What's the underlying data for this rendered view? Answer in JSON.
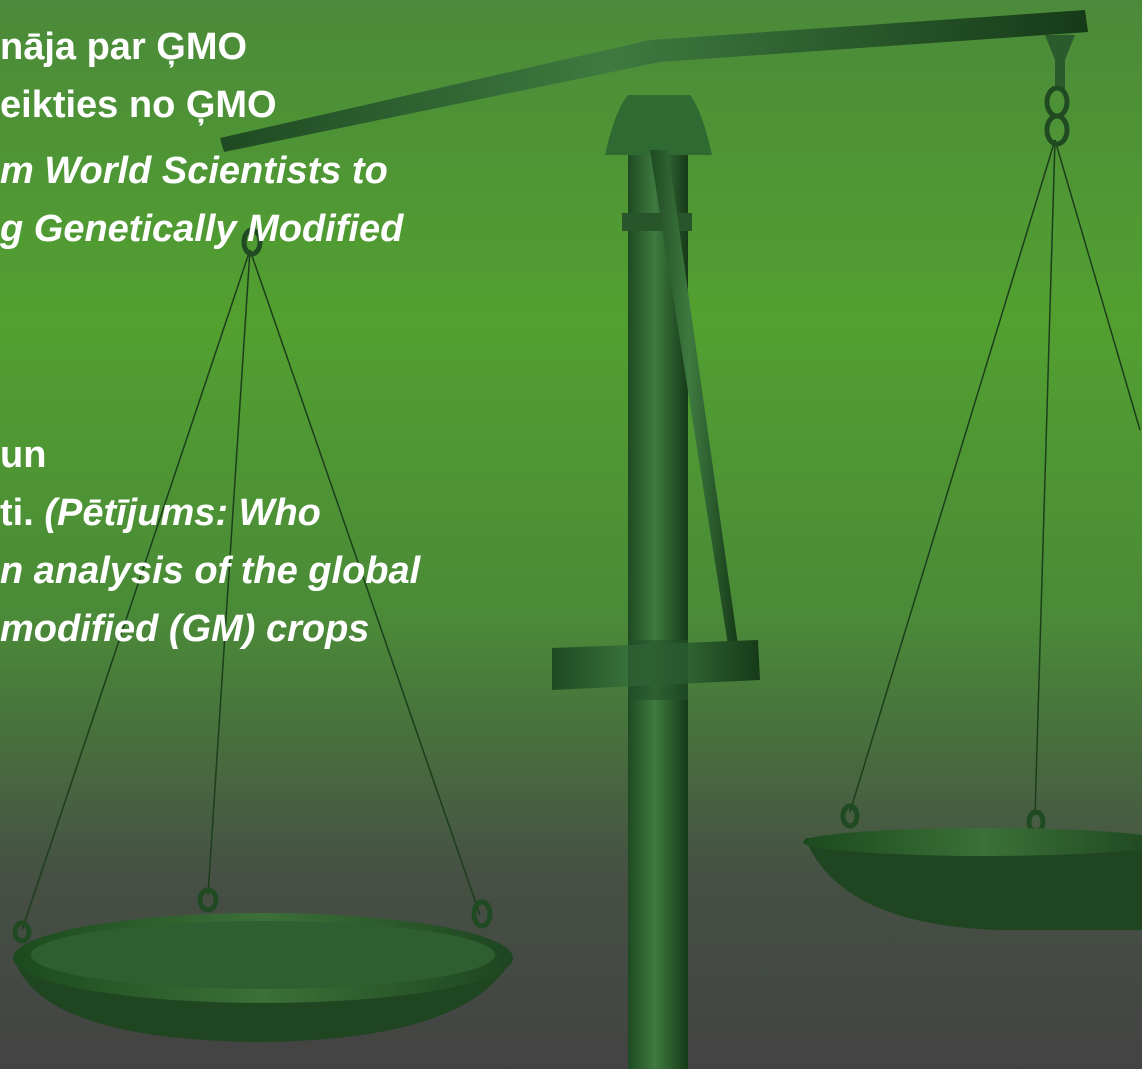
{
  "lines": [
    [
      {
        "text": "nāja par ĢMO",
        "italic": false
      }
    ],
    [
      {
        "text": "eikties no ĢMO",
        "italic": false
      }
    ],
    [
      {
        "text": "m World Scientists to",
        "italic": true
      }
    ],
    [
      {
        "text": "g Genetically Modified",
        "italic": true
      }
    ],
    [
      {
        "text": "un",
        "italic": false
      }
    ],
    [
      {
        "text": "ti. ",
        "italic": false
      },
      {
        "text": "(Pētījums: Who",
        "italic": true
      }
    ],
    [
      {
        "text": "n analysis of the global",
        "italic": true
      }
    ],
    [
      {
        "text": "modified (GM) crops",
        "italic": true
      }
    ]
  ]
}
